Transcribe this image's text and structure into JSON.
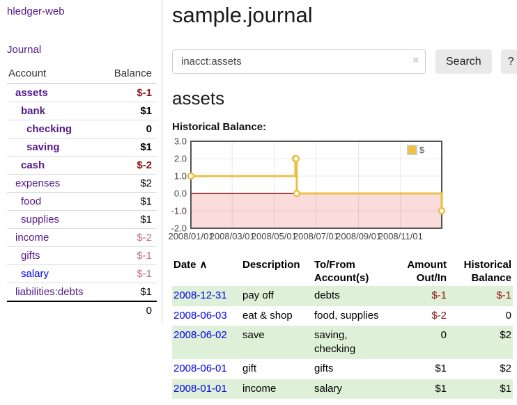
{
  "colors": {
    "link-purple": "#551a8b",
    "link-blue": "#0000ee",
    "negative-strong": "#8b1414",
    "negative-muted": "#c3737f",
    "row-green": "#dff0d8",
    "chart-line": "#e9c044",
    "chart-border": "#545454",
    "chart-negative-bg": "#fbdcdc",
    "chart-zero-line": "#990000"
  },
  "sidebar": {
    "app_title": "hledger-web",
    "journal_link": "Journal",
    "accounts_table": {
      "account_header": "Account",
      "balance_header": "Balance",
      "rows": [
        {
          "name": "assets",
          "indent": 1,
          "bold": true,
          "balance": "$-1",
          "negative": "strong"
        },
        {
          "name": "bank",
          "indent": 2,
          "bold": true,
          "balance": "$1"
        },
        {
          "name": "checking",
          "indent": 3,
          "bold": true,
          "balance": "0"
        },
        {
          "name": "saving",
          "indent": 3,
          "bold": true,
          "balance": "$1"
        },
        {
          "name": "cash",
          "indent": 2,
          "bold": true,
          "balance": "$-2",
          "negative": "strong"
        },
        {
          "name": "expenses",
          "indent": 1,
          "bold": false,
          "balance": "$2"
        },
        {
          "name": "food",
          "indent": 2,
          "bold": false,
          "balance": "$1"
        },
        {
          "name": "supplies",
          "indent": 2,
          "bold": false,
          "balance": "$1"
        },
        {
          "name": "income",
          "indent": 1,
          "bold": false,
          "balance": "$-2",
          "negative": "muted"
        },
        {
          "name": "gifts",
          "indent": 2,
          "bold": false,
          "balance": "$-1",
          "negative": "muted"
        },
        {
          "name": "salary",
          "indent": 2,
          "bold": false,
          "balance": "$-1",
          "negative": "muted",
          "color": "blue"
        },
        {
          "name": "liabilities:debts",
          "indent": 1,
          "bold": false,
          "balance": "$1"
        }
      ],
      "total": "0"
    }
  },
  "main": {
    "title": "sample.journal",
    "search": {
      "value": "inacct:assets",
      "clear_icon": "×",
      "search_button": "Search",
      "help_button": "?"
    },
    "account_heading": "assets",
    "chart_heading": "Historical Balance:"
  },
  "chart_data": {
    "type": "line",
    "title": "Historical Balance",
    "step": true,
    "grid": true,
    "xlim": [
      "2008-01-01",
      "2008-12-31"
    ],
    "ylim": [
      -2,
      3
    ],
    "series": [
      {
        "name": "$",
        "color": "#e9c044",
        "marker": "circle",
        "points": [
          {
            "date": "2008-01-01",
            "value": 1
          },
          {
            "date": "2008-06-01",
            "value": 2
          },
          {
            "date": "2008-06-02",
            "value": 2
          },
          {
            "date": "2008-06-03",
            "value": 0
          },
          {
            "date": "2008-12-31",
            "value": -1
          }
        ]
      }
    ],
    "y_ticks": [
      {
        "value": 3,
        "label": "3.0"
      },
      {
        "value": 2,
        "label": "2.0"
      },
      {
        "value": 1,
        "label": "1.0"
      },
      {
        "value": 0,
        "label": "0.0"
      },
      {
        "value": -1,
        "label": "-1.0"
      },
      {
        "value": -2,
        "label": "-2.0"
      }
    ],
    "x_ticks": [
      {
        "value": "2008-01-01",
        "label": "2008/01/01"
      },
      {
        "value": "2008-03-01",
        "label": "2008/03/01"
      },
      {
        "value": "2008-05-01",
        "label": "2008/05/01"
      },
      {
        "value": "2008-07-01",
        "label": "2008/07/01"
      },
      {
        "value": "2008-09-01",
        "label": "2008/09/01"
      },
      {
        "value": "2008-11-01",
        "label": "2008/11/01"
      }
    ],
    "legend": {
      "label": "$",
      "position": "top-right",
      "swatch_color": "#edc240"
    },
    "negative_region_color": "#fbdcdc",
    "zero_line_color": "#990000"
  },
  "transactions": {
    "headers": [
      {
        "lines": [
          "Date"
        ],
        "align": "left",
        "sort_indicator": "∧"
      },
      {
        "lines": [
          "Description"
        ],
        "align": "left"
      },
      {
        "lines": [
          "To/From",
          "Account(s)"
        ],
        "align": "left"
      },
      {
        "lines": [
          "Amount",
          "Out/In"
        ],
        "align": "right"
      },
      {
        "lines": [
          "Historical",
          "Balance"
        ],
        "align": "right"
      }
    ],
    "rows": [
      {
        "date": "2008-12-31",
        "description": "pay off",
        "accounts": "debts",
        "amount": "$-1",
        "amount_negative": true,
        "balance": "$-1",
        "balance_negative": true
      },
      {
        "date": "2008-06-03",
        "description": "eat & shop",
        "accounts": "food, supplies",
        "amount": "$-2",
        "amount_negative": true,
        "balance": "0",
        "balance_negative": false
      },
      {
        "date": "2008-06-02",
        "description": "save",
        "accounts": "saving, checking",
        "amount": "0",
        "amount_negative": false,
        "balance": "$2",
        "balance_negative": false
      },
      {
        "date": "2008-06-01",
        "description": "gift",
        "accounts": "gifts",
        "amount": "$1",
        "amount_negative": false,
        "balance": "$2",
        "balance_negative": false
      },
      {
        "date": "2008-01-01",
        "description": "income",
        "accounts": "salary",
        "amount": "$1",
        "amount_negative": false,
        "balance": "$1",
        "balance_negative": false
      }
    ]
  }
}
